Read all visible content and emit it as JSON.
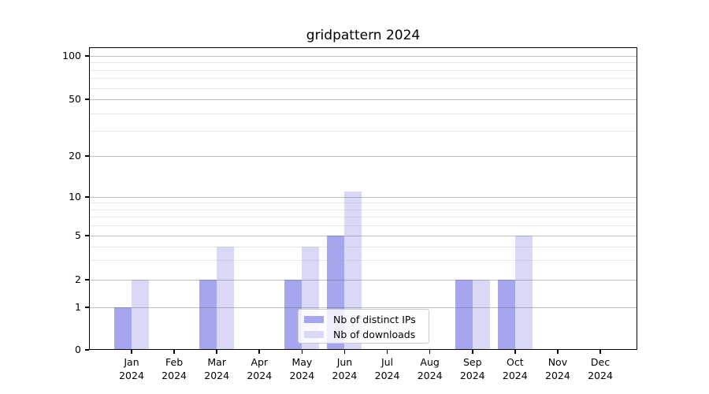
{
  "chart_data": {
    "type": "bar",
    "title": "gridpattern 2024",
    "months": [
      "Jan",
      "Feb",
      "Mar",
      "Apr",
      "May",
      "Jun",
      "Jul",
      "Aug",
      "Sep",
      "Oct",
      "Nov",
      "Dec"
    ],
    "year_label": "2024",
    "series": [
      {
        "name": "Nb of distinct IPs",
        "color": "#a6a6ee",
        "values": [
          1,
          0,
          2,
          0,
          2,
          5,
          0,
          0,
          2,
          2,
          0,
          0
        ]
      },
      {
        "name": "Nb of downloads",
        "color": "#d9d9f7",
        "values": [
          2,
          0,
          4,
          0,
          4,
          11,
          0,
          0,
          2,
          5,
          0,
          0
        ]
      }
    ],
    "yticks": [
      0,
      1,
      2,
      5,
      10,
      20,
      50,
      100
    ],
    "yscale": "symlog",
    "ylim": [
      0,
      110
    ],
    "xlabel": "",
    "ylabel": "",
    "grid": "on",
    "legend_position": "lower center"
  }
}
